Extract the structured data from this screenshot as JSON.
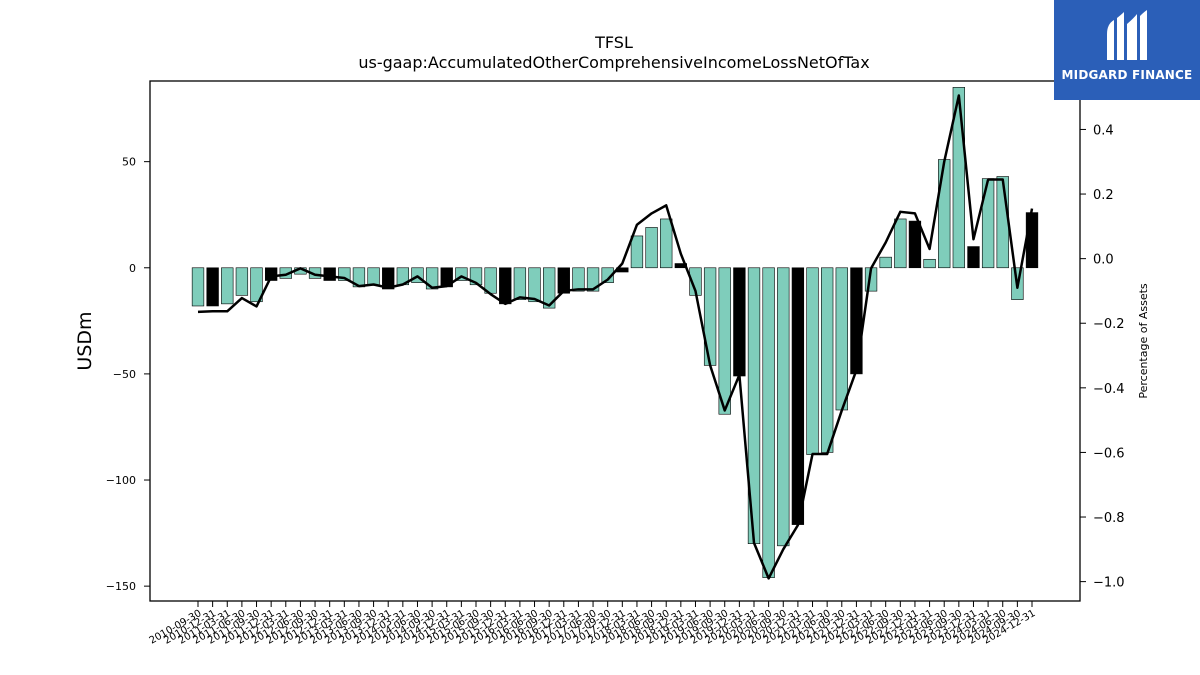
{
  "chart_data": {
    "type": "bar",
    "title": "TFSL",
    "subtitle": "us-gaap:AccumulatedOtherComprehensiveIncomeLossNetOfTax",
    "ylabel": "USDm",
    "ylabel_right": "Percentage of Assets",
    "ylim": [
      -157,
      88
    ],
    "ylim_right": [
      -1.06,
      0.55
    ],
    "yticks": [
      -150,
      -100,
      -50,
      0,
      50
    ],
    "yticks_right": [
      -1.0,
      -0.8,
      -0.6,
      -0.4,
      -0.2,
      0.0,
      0.2,
      0.4
    ],
    "yticks_right_labels": [
      "−1.0",
      "−0.8",
      "−0.6",
      "−0.4",
      "−0.2",
      "0.0",
      "0.2",
      "0.4"
    ],
    "ytick_labels": [
      "−150",
      "−100",
      "−50",
      "0",
      "50"
    ],
    "bar_fill": "#7fcdbb",
    "bar_fill_q4": "#000000",
    "line_color": "#000000",
    "categories": [
      "2010-09-30",
      "2010-12-31",
      "2011-03-31",
      "2011-06-30",
      "2011-09-30",
      "2011-12-31",
      "2012-03-31",
      "2012-06-30",
      "2012-09-30",
      "2012-12-31",
      "2013-03-31",
      "2013-06-30",
      "2013-09-30",
      "2013-12-31",
      "2014-03-31",
      "2014-06-30",
      "2014-09-30",
      "2014-12-31",
      "2015-03-31",
      "2015-06-30",
      "2015-09-30",
      "2015-12-31",
      "2016-03-31",
      "2016-06-30",
      "2016-09-30",
      "2016-12-31",
      "2017-03-31",
      "2017-06-30",
      "2017-09-30",
      "2017-12-31",
      "2018-03-31",
      "2018-06-30",
      "2018-09-30",
      "2018-12-31",
      "2019-03-31",
      "2019-06-30",
      "2019-09-30",
      "2019-12-31",
      "2020-03-31",
      "2020-06-30",
      "2020-09-30",
      "2020-12-31",
      "2021-03-31",
      "2021-06-30",
      "2021-09-30",
      "2021-12-31",
      "2022-03-31",
      "2022-06-30",
      "2022-09-30",
      "2022-12-31",
      "2023-03-31",
      "2023-06-30",
      "2023-09-30",
      "2023-12-31",
      "2024-03-31",
      "2024-06-30",
      "2024-09-30",
      "2024-12-31"
    ],
    "values": [
      -18,
      -18,
      -17,
      -13,
      -16,
      -6,
      -5,
      -3,
      -5,
      -6,
      -6,
      -9,
      -8,
      -10,
      -8,
      -7,
      -10,
      -9,
      -6,
      -8,
      -12,
      -17,
      -15,
      -16,
      -19,
      -12,
      -11,
      -11,
      -7,
      -2,
      15,
      19,
      23,
      2,
      -13,
      -46,
      -69,
      -51,
      -130,
      -146,
      -131,
      -121,
      -88,
      -87,
      -67,
      -50,
      -11,
      5,
      23,
      22,
      4,
      51,
      85,
      10,
      42,
      43,
      -15,
      26
    ],
    "percent_of_assets": [
      -0.165,
      -0.163,
      -0.163,
      -0.122,
      -0.148,
      -0.055,
      -0.05,
      -0.03,
      -0.05,
      -0.055,
      -0.06,
      -0.085,
      -0.08,
      -0.09,
      -0.08,
      -0.055,
      -0.09,
      -0.085,
      -0.055,
      -0.075,
      -0.11,
      -0.14,
      -0.12,
      -0.125,
      -0.145,
      -0.1,
      -0.095,
      -0.095,
      -0.065,
      -0.015,
      0.105,
      0.14,
      0.165,
      0.015,
      -0.1,
      -0.33,
      -0.47,
      -0.36,
      -0.88,
      -0.99,
      -0.9,
      -0.825,
      -0.605,
      -0.605,
      -0.47,
      -0.345,
      -0.03,
      0.05,
      0.145,
      0.14,
      0.03,
      0.3,
      0.505,
      0.06,
      0.245,
      0.245,
      -0.09,
      0.155
    ]
  },
  "logo": {
    "text": "MIDGARD FINANCE",
    "color": "#2b5fb8"
  }
}
